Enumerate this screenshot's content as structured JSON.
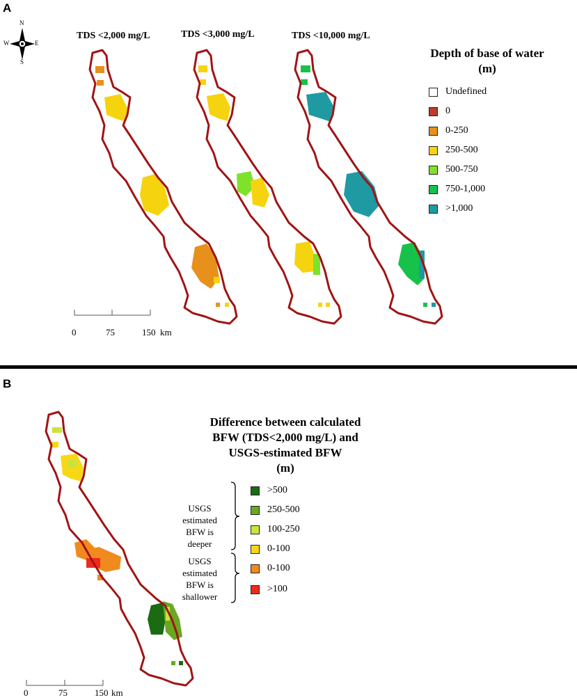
{
  "panel_a": {
    "letter": "A",
    "compass": {
      "n": "N",
      "s": "S",
      "e": "E",
      "w": "W"
    },
    "map_titles": [
      "TDS <2,000 mg/L",
      "TDS <3,000 mg/L",
      "TDS <10,000 mg/L"
    ],
    "legend": {
      "title_line1": "Depth of base of water",
      "title_line2": "(m)",
      "items": [
        {
          "label": "Undefined",
          "color": "#ffffff"
        },
        {
          "label": "0",
          "color": "#c0392b"
        },
        {
          "label": "0-250",
          "color": "#e8901c"
        },
        {
          "label": "250-500",
          "color": "#f5d40f"
        },
        {
          "label": "500-750",
          "color": "#7fe22a"
        },
        {
          "label": "750-1,000",
          "color": "#16c24a"
        },
        {
          "label": ">1,000",
          "color": "#1f9aa3"
        }
      ]
    },
    "scale": {
      "ticks": [
        "0",
        "75",
        "150"
      ],
      "unit": "km"
    }
  },
  "panel_b": {
    "letter": "B",
    "legend": {
      "title_lines": [
        "Difference between calculated",
        "BFW (TDS<2,000 mg/L) and",
        "USGS-estimated BFW",
        "(m)"
      ],
      "group_deeper": [
        "USGS",
        "estimated",
        "BFW is",
        "deeper"
      ],
      "group_shallower": [
        "USGS",
        "estimated",
        "BFW is",
        "shallower"
      ],
      "items": [
        {
          "label": ">500",
          "color": "#1a6b12"
        },
        {
          "label": "250-500",
          "color": "#6aa824"
        },
        {
          "label": "100-250",
          "color": "#cde33a"
        },
        {
          "label": "0-100",
          "color": "#f7d816"
        },
        {
          "label": "0-100",
          "color": "#f08a1e"
        },
        {
          "label": ">100",
          "color": "#ee2a1c"
        }
      ]
    },
    "scale": {
      "ticks": [
        "0",
        "75",
        "150"
      ],
      "unit": "km"
    }
  },
  "colors": {
    "outline": "#a01414",
    "divider": "#000000"
  }
}
